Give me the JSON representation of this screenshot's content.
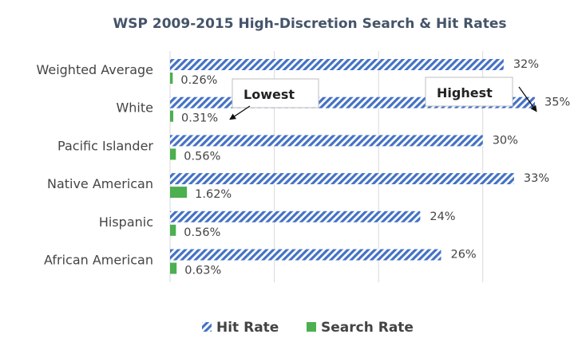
{
  "chart_data": {
    "type": "bar",
    "orientation": "horizontal",
    "title": "WSP 2009-2015 High-Discretion Search & Hit Rates",
    "categories": [
      "Weighted Average",
      "White",
      "Pacific Islander",
      "Native American",
      "Hispanic",
      "African American"
    ],
    "series": [
      {
        "name": "Hit Rate",
        "values": [
          32,
          35,
          30,
          33,
          24,
          26
        ],
        "labels": [
          "32%",
          "35%",
          "30%",
          "33%",
          "24%",
          "26%"
        ],
        "color": "#4472c4",
        "pattern": "diagonal-stripes"
      },
      {
        "name": "Search Rate",
        "values": [
          0.26,
          0.31,
          0.56,
          1.62,
          0.56,
          0.63
        ],
        "labels": [
          "0.26%",
          "0.31%",
          "0.56%",
          "1.62%",
          "0.56%",
          "0.63%"
        ],
        "color": "#4caf50"
      }
    ],
    "xlim": [
      0,
      35
    ],
    "grid": true,
    "legend": "bottom",
    "annotations": [
      {
        "text": "Lowest",
        "target_category": "White",
        "target_series": "Search Rate"
      },
      {
        "text": "Highest",
        "target_category": "White",
        "target_series": "Hit Rate"
      }
    ]
  }
}
